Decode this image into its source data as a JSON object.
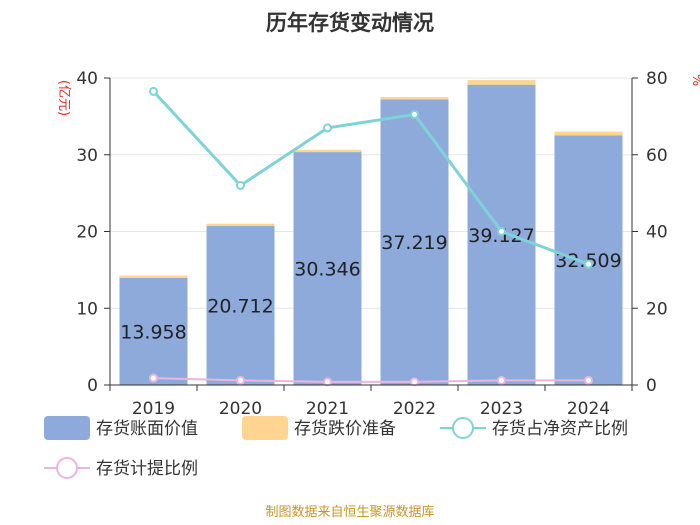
{
  "chart_data": {
    "type": "bar",
    "title": "历年存货变动情况",
    "left_unit": "(亿元)",
    "right_unit": "%",
    "categories": [
      "2019",
      "2020",
      "2021",
      "2022",
      "2023",
      "2024"
    ],
    "y_left": {
      "min": 0,
      "max": 40,
      "ticks": [
        "0",
        "10",
        "20",
        "30",
        "40"
      ]
    },
    "y_right": {
      "min": 0,
      "max": 80,
      "ticks": [
        "0",
        "20",
        "40",
        "60",
        "80"
      ]
    },
    "series": [
      {
        "name": "存货账面价值",
        "kind": "bar",
        "axis": "left",
        "color": "#8eaadb",
        "values": [
          13.958,
          20.712,
          30.346,
          37.219,
          39.127,
          32.509
        ],
        "labels": [
          "13.958",
          "20.712",
          "30.346",
          "37.219",
          "39.127",
          "32.509"
        ]
      },
      {
        "name": "存货跌价准备",
        "kind": "bar",
        "axis": "left",
        "color": "#ffd591",
        "values": [
          0.3,
          0.3,
          0.3,
          0.3,
          0.6,
          0.5
        ]
      },
      {
        "name": "存货占净资产比例",
        "kind": "line",
        "axis": "right",
        "color": "#7fd3d6",
        "values": [
          76.5,
          52,
          67,
          70.5,
          40,
          31.5
        ]
      },
      {
        "name": "存货计提比例",
        "kind": "line",
        "axis": "right",
        "color": "#e9b7de",
        "values": [
          1.8,
          1.2,
          0.8,
          0.8,
          1.2,
          1.2
        ]
      }
    ],
    "legend_position": "bottom"
  },
  "footer": "制图数据来自恒生聚源数据库"
}
